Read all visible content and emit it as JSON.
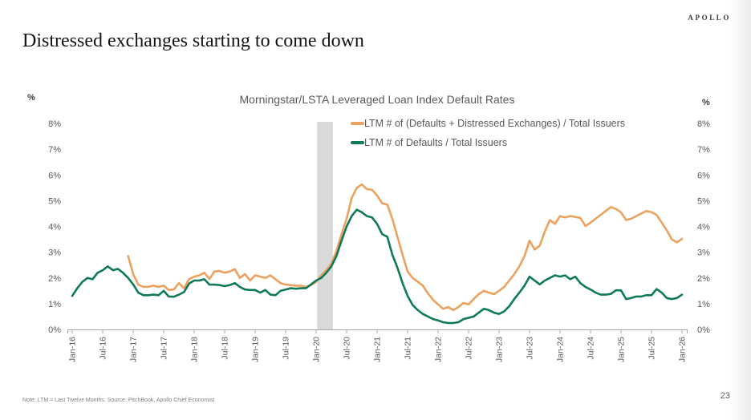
{
  "slide": {
    "brand": "APOLLO",
    "title": "Distressed exchanges starting to come down",
    "footnote": "Note: LTM = Last Twelve Months. Source: PitchBook, Apollo Chief Economist",
    "page_number": "23"
  },
  "chart_data": {
    "type": "line",
    "title": "Morningstar/LSTA Leveraged Loan Index Default Rates",
    "y_axis_unit_label": "%",
    "ylim": [
      0,
      8
    ],
    "grid": "off",
    "legend_position": "top-right-inside",
    "y_tick_labels": [
      "8%",
      "7%",
      "6%",
      "5%",
      "4%",
      "3%",
      "2%",
      "1%",
      "0%"
    ],
    "x_tick_labels": [
      "Jan-16",
      "Jul-16",
      "Jan-17",
      "Jul-17",
      "Jan-18",
      "Jul-18",
      "Jan-19",
      "Jul-19",
      "Jan-20",
      "Jul-20",
      "Jan-21",
      "Jul-21",
      "Jan-22",
      "Jul-22",
      "Jan-23",
      "Jul-23",
      "Jan-24",
      "Jul-24",
      "Jan-25",
      "Jul-25",
      "Jan-26"
    ],
    "x_frequency": "monthly",
    "x_start": "Jan-16",
    "x_end": "Jan-26",
    "recession_band": {
      "from": "Feb-20",
      "to": "Apr-20",
      "from_month_index": 48.2,
      "to_month_index": 51.3,
      "color": "#d9d9d9"
    },
    "axis_color": "#a6a6a6",
    "tick_label_color": "#595959",
    "series": [
      {
        "name": "LTM # of (Defaults + Distressed Exchanges) / Total Issuers",
        "color": "#EDA15F",
        "values": [
          null,
          null,
          null,
          null,
          null,
          null,
          null,
          null,
          null,
          null,
          null,
          2.85,
          2.15,
          1.74,
          1.65,
          1.66,
          1.7,
          1.65,
          1.7,
          1.53,
          1.55,
          1.8,
          1.6,
          1.95,
          2.05,
          2.1,
          2.2,
          1.96,
          2.25,
          2.27,
          2.2,
          2.25,
          2.34,
          2.0,
          2.15,
          1.9,
          2.1,
          2.05,
          2.0,
          2.1,
          1.95,
          1.8,
          1.74,
          1.72,
          1.7,
          1.7,
          1.65,
          1.72,
          1.85,
          2.1,
          2.3,
          2.55,
          3.05,
          3.7,
          4.3,
          5.1,
          5.5,
          5.63,
          5.45,
          5.42,
          5.2,
          4.9,
          4.85,
          4.3,
          3.6,
          2.9,
          2.25,
          2.0,
          1.85,
          1.7,
          1.4,
          1.15,
          0.97,
          0.8,
          0.87,
          0.75,
          0.87,
          1.03,
          0.97,
          1.18,
          1.37,
          1.5,
          1.43,
          1.37,
          1.5,
          1.65,
          1.9,
          2.15,
          2.45,
          2.85,
          3.45,
          3.1,
          3.25,
          3.8,
          4.25,
          4.1,
          4.4,
          4.35,
          4.4,
          4.37,
          4.33,
          4.02,
          4.15,
          4.3,
          4.45,
          4.6,
          4.75,
          4.68,
          4.55,
          4.25,
          4.3,
          4.4,
          4.5,
          4.6,
          4.55,
          4.45,
          4.15,
          3.85,
          3.5,
          3.38,
          3.52
        ]
      },
      {
        "name": "LTM # of Defaults / Total Issuers",
        "color": "#0E7A5A",
        "values": [
          1.3,
          1.6,
          1.85,
          2.0,
          1.95,
          2.2,
          2.3,
          2.45,
          2.3,
          2.35,
          2.2,
          2.0,
          1.75,
          1.43,
          1.33,
          1.33,
          1.35,
          1.33,
          1.5,
          1.28,
          1.27,
          1.35,
          1.45,
          1.78,
          1.9,
          1.9,
          1.95,
          1.74,
          1.74,
          1.72,
          1.68,
          1.72,
          1.8,
          1.65,
          1.55,
          1.53,
          1.53,
          1.43,
          1.53,
          1.35,
          1.33,
          1.5,
          1.55,
          1.6,
          1.58,
          1.6,
          1.6,
          1.75,
          1.9,
          2.0,
          2.2,
          2.45,
          2.85,
          3.45,
          4.0,
          4.4,
          4.65,
          4.55,
          4.4,
          4.35,
          4.1,
          3.7,
          3.6,
          2.9,
          2.4,
          1.8,
          1.3,
          0.95,
          0.75,
          0.6,
          0.5,
          0.4,
          0.35,
          0.28,
          0.25,
          0.25,
          0.28,
          0.4,
          0.45,
          0.5,
          0.65,
          0.8,
          0.75,
          0.65,
          0.6,
          0.7,
          0.9,
          1.18,
          1.43,
          1.7,
          2.05,
          1.9,
          1.75,
          1.9,
          2.0,
          2.1,
          2.05,
          2.1,
          1.95,
          2.05,
          1.8,
          1.65,
          1.55,
          1.43,
          1.35,
          1.35,
          1.38,
          1.52,
          1.52,
          1.18,
          1.22,
          1.28,
          1.28,
          1.33,
          1.33,
          1.57,
          1.43,
          1.22,
          1.18,
          1.22,
          1.35
        ]
      }
    ]
  }
}
